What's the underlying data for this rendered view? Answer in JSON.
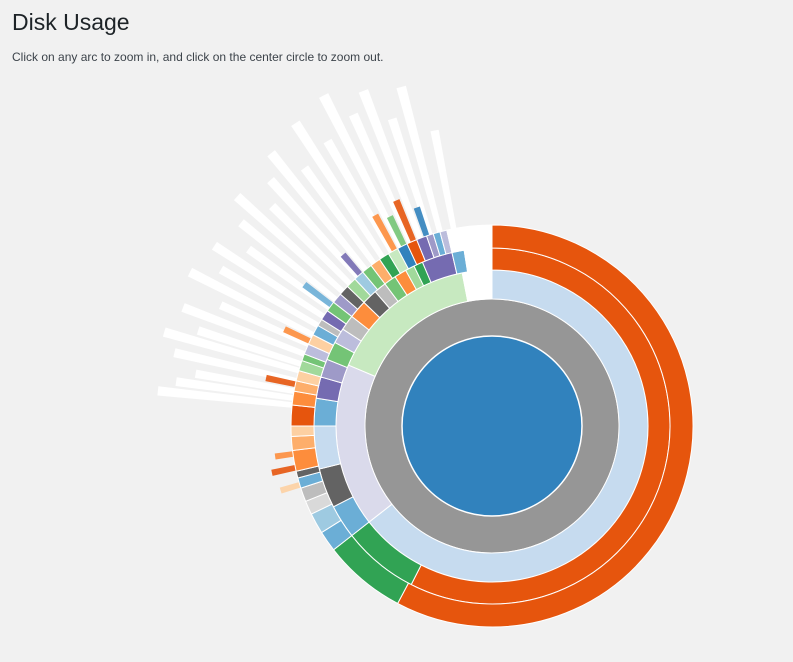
{
  "page": {
    "title": "Disk Usage",
    "description": "Click on any arc to zoom in, and click on the center circle to zoom out."
  },
  "chart_data": {
    "type": "sunburst",
    "title": "",
    "center": {
      "color": "#3182bd"
    },
    "rings": [
      [
        {
          "start": 0,
          "end": 360,
          "color": "#969696"
        }
      ],
      [
        {
          "start": 0,
          "end": 232,
          "color": "#c6dbef"
        },
        {
          "start": 232,
          "end": 293,
          "color": "#dadaeb"
        },
        {
          "start": 293,
          "end": 349,
          "color": "#c7e9c0"
        },
        {
          "start": 349,
          "end": 360,
          "color": "#ffffff"
        }
      ],
      [
        {
          "start": 0,
          "end": 207,
          "color": "#e6550d"
        },
        {
          "start": 207,
          "end": 232,
          "color": "#31a354"
        },
        {
          "start": 232,
          "end": 243,
          "color": "#6baed6"
        },
        {
          "start": 243,
          "end": 256,
          "color": "#636363"
        },
        {
          "start": 256,
          "end": 270,
          "color": "#c6dbef"
        },
        {
          "start": 270,
          "end": 279,
          "color": "#6baed6"
        },
        {
          "start": 279,
          "end": 286,
          "color": "#756bb1"
        },
        {
          "start": 286,
          "end": 292,
          "color": "#9e9ac8"
        },
        {
          "start": 292,
          "end": 298,
          "color": "#74c476"
        },
        {
          "start": 298,
          "end": 303,
          "color": "#bcbddc"
        },
        {
          "start": 303,
          "end": 308,
          "color": "#bdbdbd"
        },
        {
          "start": 308,
          "end": 314,
          "color": "#fd8d3c"
        },
        {
          "start": 314,
          "end": 319,
          "color": "#636363"
        },
        {
          "start": 319,
          "end": 323,
          "color": "#bdbdbd"
        },
        {
          "start": 323,
          "end": 327,
          "color": "#74c476"
        },
        {
          "start": 327,
          "end": 331,
          "color": "#fd8d3c"
        },
        {
          "start": 331,
          "end": 334,
          "color": "#a1d99b"
        },
        {
          "start": 334,
          "end": 337,
          "color": "#31a354"
        },
        {
          "start": 337,
          "end": 347,
          "color": "#756bb1"
        },
        {
          "start": 347,
          "end": 351,
          "color": "#6baed6"
        },
        {
          "start": 351,
          "end": 360,
          "color": "#ffffff"
        }
      ],
      [
        {
          "start": 0,
          "end": 208,
          "color": "#e6550d"
        },
        {
          "start": 208,
          "end": 232,
          "color": "#31a354"
        },
        {
          "start": 232,
          "end": 238,
          "color": "#6baed6"
        },
        {
          "start": 238,
          "end": 244,
          "color": "#9ecae1"
        },
        {
          "start": 244,
          "end": 248,
          "color": "#d9d9d9"
        },
        {
          "start": 248,
          "end": 252,
          "color": "#bdbdbd"
        },
        {
          "start": 252,
          "end": 255,
          "color": "#6baed6"
        },
        {
          "start": 255,
          "end": 257,
          "color": "#636363"
        },
        {
          "start": 257,
          "end": 263,
          "color": "#fd8d3c"
        },
        {
          "start": 263,
          "end": 267,
          "color": "#fdae6b"
        },
        {
          "start": 267,
          "end": 270,
          "color": "#fdd0a2"
        },
        {
          "start": 270,
          "end": 276,
          "color": "#e6550d"
        },
        {
          "start": 276,
          "end": 280,
          "color": "#fd8d3c"
        },
        {
          "start": 280,
          "end": 283,
          "color": "#fdae6b"
        },
        {
          "start": 283,
          "end": 286,
          "color": "#fdd0a2"
        },
        {
          "start": 286,
          "end": 289,
          "color": "#a1d99b"
        },
        {
          "start": 289,
          "end": 291,
          "color": "#74c476"
        },
        {
          "start": 291,
          "end": 294,
          "color": "#bcbddc"
        },
        {
          "start": 294,
          "end": 297,
          "color": "#fdd0a2"
        },
        {
          "start": 297,
          "end": 300,
          "color": "#6baed6"
        },
        {
          "start": 300,
          "end": 302,
          "color": "#bdbdbd"
        },
        {
          "start": 302,
          "end": 305,
          "color": "#756bb1"
        },
        {
          "start": 305,
          "end": 308,
          "color": "#74c476"
        },
        {
          "start": 308,
          "end": 311,
          "color": "#9e9ac8"
        },
        {
          "start": 311,
          "end": 314,
          "color": "#636363"
        },
        {
          "start": 314,
          "end": 317,
          "color": "#a1d99b"
        },
        {
          "start": 317,
          "end": 320,
          "color": "#9ecae1"
        },
        {
          "start": 320,
          "end": 323,
          "color": "#74c476"
        },
        {
          "start": 323,
          "end": 326,
          "color": "#fdae6b"
        },
        {
          "start": 326,
          "end": 329,
          "color": "#31a354"
        },
        {
          "start": 329,
          "end": 332,
          "color": "#c7e9c0"
        },
        {
          "start": 332,
          "end": 335,
          "color": "#3182bd"
        },
        {
          "start": 335,
          "end": 338,
          "color": "#e6550d"
        },
        {
          "start": 338,
          "end": 341,
          "color": "#756bb1"
        },
        {
          "start": 341,
          "end": 343,
          "color": "#9e9ac8"
        },
        {
          "start": 343,
          "end": 345,
          "color": "#6baed6"
        },
        {
          "start": 345,
          "end": 347,
          "color": "#bcbddc"
        },
        {
          "start": 347,
          "end": 360,
          "color": "#ffffff"
        }
      ]
    ],
    "rays": [
      {
        "angle": 276,
        "len": 135,
        "color": "#ffffff"
      },
      {
        "angle": 278,
        "len": 118,
        "color": "#ffffff"
      },
      {
        "angle": 280,
        "len": 100,
        "color": "#ffffff"
      },
      {
        "angle": 283,
        "len": 125,
        "color": "#ffffff"
      },
      {
        "angle": 286,
        "len": 140,
        "color": "#ffffff"
      },
      {
        "angle": 288,
        "len": 108,
        "color": "#ffffff"
      },
      {
        "angle": 291,
        "len": 130,
        "color": "#ffffff"
      },
      {
        "angle": 294,
        "len": 96,
        "color": "#ffffff"
      },
      {
        "angle": 297,
        "len": 138,
        "color": "#ffffff"
      },
      {
        "angle": 300,
        "len": 112,
        "color": "#ffffff"
      },
      {
        "angle": 303,
        "len": 130,
        "color": "#ffffff"
      },
      {
        "angle": 306,
        "len": 100,
        "color": "#ffffff"
      },
      {
        "angle": 309,
        "len": 122,
        "color": "#ffffff"
      },
      {
        "angle": 312,
        "len": 142,
        "color": "#ffffff"
      },
      {
        "angle": 315,
        "len": 110,
        "color": "#ffffff"
      },
      {
        "angle": 318,
        "len": 130,
        "color": "#ffffff"
      },
      {
        "angle": 321,
        "len": 150,
        "color": "#ffffff"
      },
      {
        "angle": 324,
        "len": 118,
        "color": "#ffffff"
      },
      {
        "angle": 327,
        "len": 160,
        "color": "#ffffff"
      },
      {
        "angle": 330,
        "len": 128,
        "color": "#ffffff"
      },
      {
        "angle": 333,
        "len": 170,
        "color": "#ffffff"
      },
      {
        "angle": 336,
        "len": 140,
        "color": "#ffffff"
      },
      {
        "angle": 339,
        "len": 158,
        "color": "#ffffff"
      },
      {
        "angle": 342,
        "len": 122,
        "color": "#ffffff"
      },
      {
        "angle": 345,
        "len": 150,
        "color": "#ffffff"
      },
      {
        "angle": 349,
        "len": 100,
        "color": "#ffffff"
      },
      {
        "angle": 282,
        "len": 30,
        "color": "#e6550d"
      },
      {
        "angle": 295,
        "len": 28,
        "color": "#fd8d3c"
      },
      {
        "angle": 307,
        "len": 34,
        "color": "#6baed6"
      },
      {
        "angle": 319,
        "len": 26,
        "color": "#756bb1"
      },
      {
        "angle": 331,
        "len": 40,
        "color": "#fd8d3c"
      },
      {
        "angle": 337,
        "len": 44,
        "color": "#e6550d"
      },
      {
        "angle": 341,
        "len": 30,
        "color": "#3182bd"
      },
      {
        "angle": 334,
        "len": 32,
        "color": "#74c476"
      },
      {
        "angle": 253,
        "len": 20,
        "color": "#fdd0a2"
      },
      {
        "angle": 258,
        "len": 24,
        "color": "#e6550d"
      },
      {
        "angle": 262,
        "len": 18,
        "color": "#fd8d3c"
      }
    ]
  }
}
